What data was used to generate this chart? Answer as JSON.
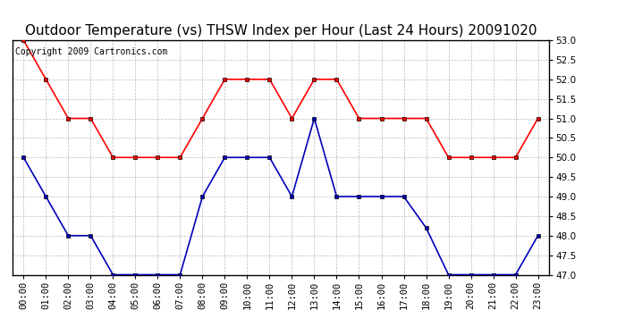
{
  "title": "Outdoor Temperature (vs) THSW Index per Hour (Last 24 Hours) 20091020",
  "copyright_text": "Copyright 2009 Cartronics.com",
  "hours": [
    "00:00",
    "01:00",
    "02:00",
    "03:00",
    "04:00",
    "05:00",
    "06:00",
    "07:00",
    "08:00",
    "09:00",
    "10:00",
    "11:00",
    "12:00",
    "13:00",
    "14:00",
    "15:00",
    "16:00",
    "17:00",
    "18:00",
    "19:00",
    "20:00",
    "21:00",
    "22:00",
    "23:00"
  ],
  "red_data": [
    53.0,
    52.0,
    51.0,
    51.0,
    50.0,
    50.0,
    50.0,
    50.0,
    51.0,
    52.0,
    52.0,
    52.0,
    51.0,
    52.0,
    52.0,
    51.0,
    51.0,
    51.0,
    51.0,
    50.0,
    50.0,
    50.0,
    50.0,
    51.0
  ],
  "blue_data": [
    50.0,
    49.0,
    48.0,
    48.0,
    47.0,
    47.0,
    47.0,
    47.0,
    49.0,
    50.0,
    50.0,
    50.0,
    49.0,
    51.0,
    49.0,
    49.0,
    49.0,
    49.0,
    48.2,
    47.0,
    47.0,
    47.0,
    47.0,
    48.0
  ],
  "ylim": [
    47.0,
    53.0
  ],
  "yticks": [
    47.0,
    47.5,
    48.0,
    48.5,
    49.0,
    49.5,
    50.0,
    50.5,
    51.0,
    51.5,
    52.0,
    52.5,
    53.0
  ],
  "red_color": "#ff0000",
  "blue_color": "#0000bb",
  "grid_color": "#bbbbbb",
  "bg_color": "#ffffff",
  "plot_bg_color": "#ffffff",
  "title_fontsize": 11,
  "copyright_fontsize": 7,
  "tick_fontsize": 7.5,
  "marker": "s",
  "marker_size": 3,
  "line_width": 1.2
}
